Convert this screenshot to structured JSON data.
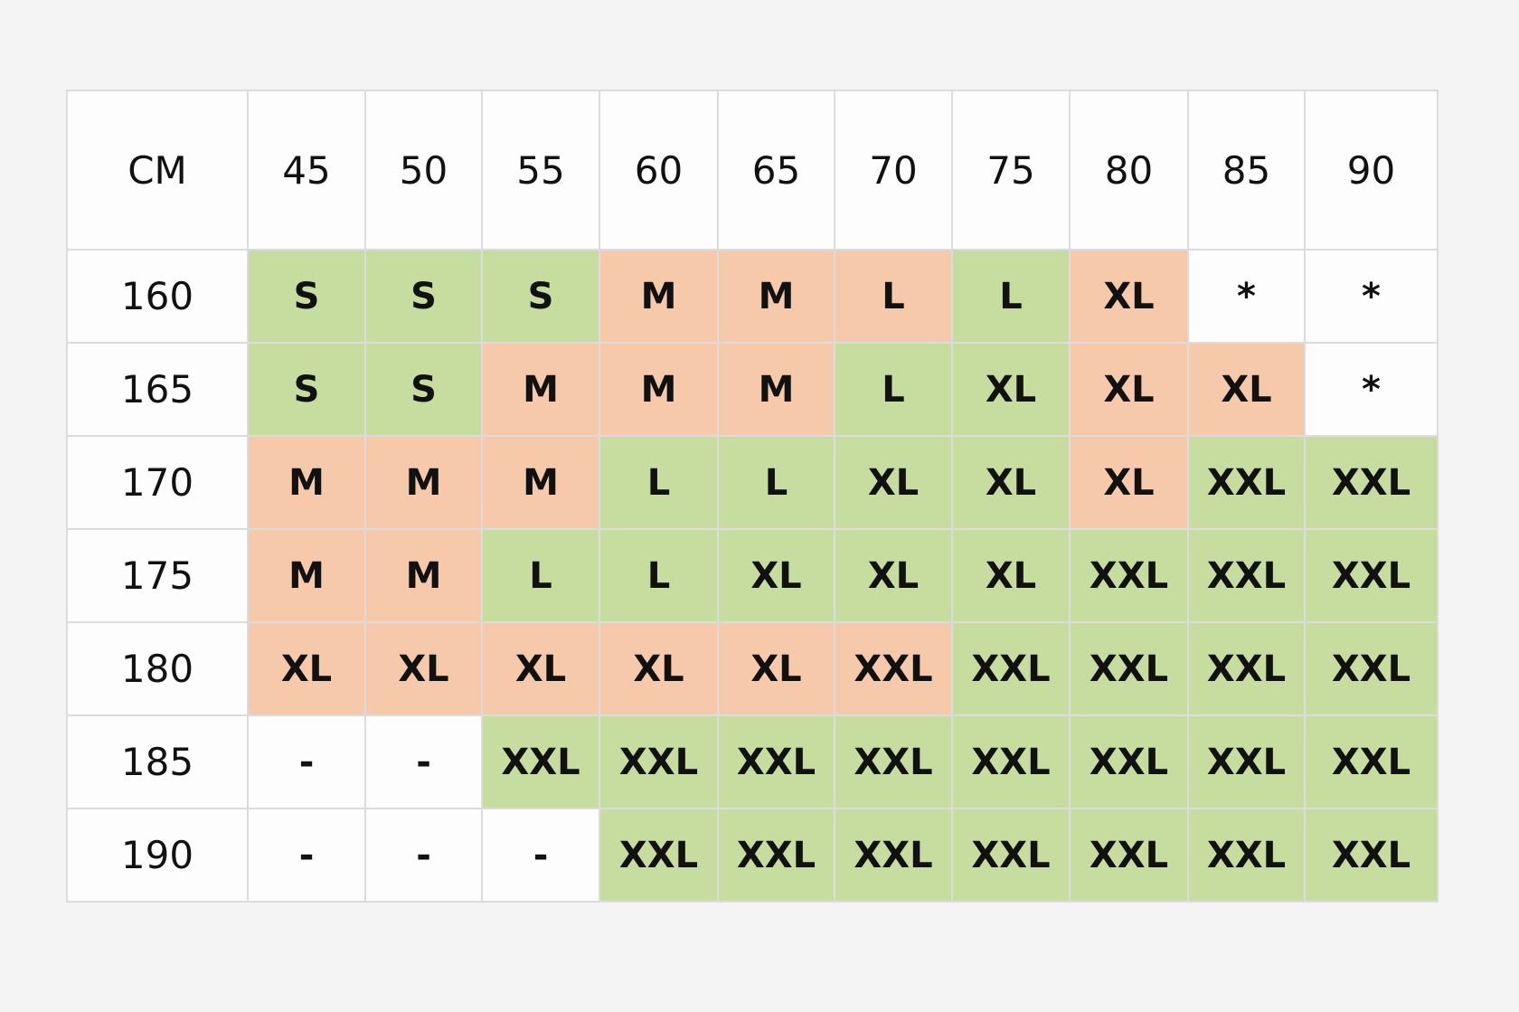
{
  "chart_data": {
    "type": "table",
    "corner_label": "CM",
    "columns": [
      "45",
      "50",
      "55",
      "60",
      "65",
      "70",
      "75",
      "80",
      "85",
      "90"
    ],
    "rows": [
      {
        "label": "160",
        "cells": [
          "S",
          "S",
          "S",
          "M",
          "M",
          "L",
          "L",
          "XL",
          "*",
          "*"
        ],
        "colors": [
          "g",
          "g",
          "g",
          "o",
          "o",
          "o",
          "g",
          "o",
          "w",
          "w"
        ]
      },
      {
        "label": "165",
        "cells": [
          "S",
          "S",
          "M",
          "M",
          "M",
          "L",
          "XL",
          "XL",
          "XL",
          "*"
        ],
        "colors": [
          "g",
          "g",
          "o",
          "o",
          "o",
          "g",
          "g",
          "o",
          "o",
          "w"
        ]
      },
      {
        "label": "170",
        "cells": [
          "M",
          "M",
          "M",
          "L",
          "L",
          "XL",
          "XL",
          "XL",
          "XXL",
          "XXL"
        ],
        "colors": [
          "o",
          "o",
          "o",
          "g",
          "g",
          "g",
          "g",
          "o",
          "g",
          "g"
        ]
      },
      {
        "label": "175",
        "cells": [
          "M",
          "M",
          "L",
          "L",
          "XL",
          "XL",
          "XL",
          "XXL",
          "XXL",
          "XXL"
        ],
        "colors": [
          "o",
          "o",
          "g",
          "g",
          "g",
          "g",
          "g",
          "g",
          "g",
          "g"
        ]
      },
      {
        "label": "180",
        "cells": [
          "XL",
          "XL",
          "XL",
          "XL",
          "XL",
          "XXL",
          "XXL",
          "XXL",
          "XXL",
          "XXL"
        ],
        "colors": [
          "o",
          "o",
          "o",
          "o",
          "o",
          "o",
          "g",
          "g",
          "g",
          "g"
        ]
      },
      {
        "label": "185",
        "cells": [
          "-",
          "-",
          "XXL",
          "XXL",
          "XXL",
          "XXL",
          "XXL",
          "XXL",
          "XXL",
          "XXL"
        ],
        "colors": [
          "w",
          "w",
          "g",
          "g",
          "g",
          "g",
          "g",
          "g",
          "g",
          "g"
        ]
      },
      {
        "label": "190",
        "cells": [
          "-",
          "-",
          "-",
          "XXL",
          "XXL",
          "XXL",
          "XXL",
          "XXL",
          "XXL",
          "XXL"
        ],
        "colors": [
          "w",
          "w",
          "w",
          "g",
          "g",
          "g",
          "g",
          "g",
          "g",
          "g"
        ]
      }
    ],
    "color_key": {
      "g": "#c7dd9f",
      "o": "#f6c9ab",
      "w": "#fdfdfd"
    }
  }
}
